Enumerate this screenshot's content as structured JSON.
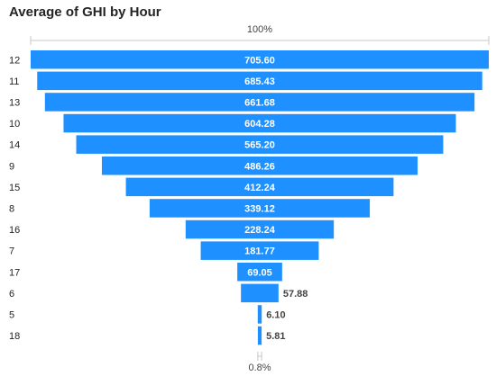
{
  "colors": {
    "bar": "#1E90FF",
    "axis": "#c8c8c8"
  },
  "chart_data": {
    "type": "funnel",
    "title": "Average of GHI by Hour",
    "top_label": "100%",
    "bottom_label": "0.8%",
    "categories": [
      "12",
      "11",
      "13",
      "10",
      "14",
      "9",
      "15",
      "8",
      "16",
      "7",
      "17",
      "6",
      "5",
      "18"
    ],
    "values": [
      705.6,
      685.43,
      661.68,
      604.28,
      565.2,
      486.26,
      412.24,
      339.12,
      228.24,
      181.77,
      69.05,
      57.88,
      6.1,
      5.81
    ],
    "value_labels": [
      "705.60",
      "685.43",
      "661.68",
      "604.28",
      "565.20",
      "486.26",
      "412.24",
      "339.12",
      "228.24",
      "181.77",
      "69.05",
      "57.88",
      "6.10",
      "5.81"
    ]
  }
}
